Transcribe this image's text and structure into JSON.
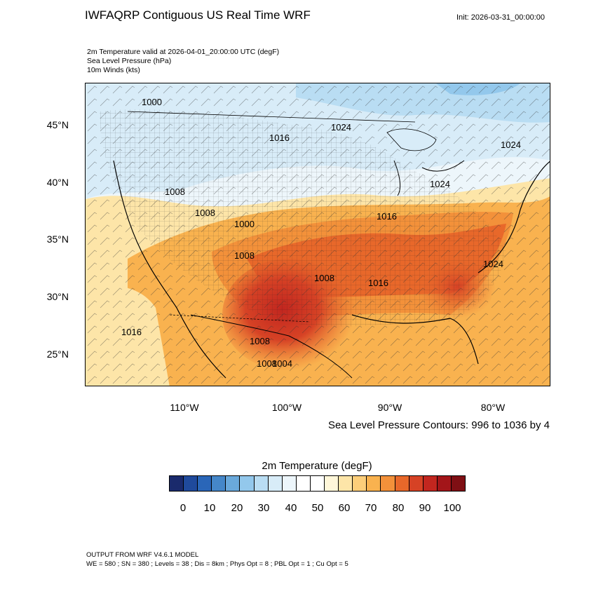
{
  "header": {
    "title": "IWFAQRP Contiguous US Real Time WRF",
    "init": "Init: 2026-03-31_00:00:00"
  },
  "fields": [
    "2m Temperature valid at 2026-04-01_20:00:00 UTC   (degF)",
    "Sea Level Pressure   (hPa)",
    "10m Winds   (kts)"
  ],
  "axes": {
    "lat_labels": [
      "45°N",
      "40°N",
      "35°N",
      "30°N",
      "25°N"
    ],
    "lon_labels": [
      "110°W",
      "100°W",
      "90°W",
      "80°W"
    ]
  },
  "contour_note": "Sea Level Pressure Contours: 996 to 1036 by 4",
  "contour_labels": [
    "1000",
    "1016",
    "1024",
    "1024",
    "1008",
    "1008",
    "1000",
    "1008",
    "1008",
    "1024",
    "1016",
    "1016",
    "1024",
    "1016",
    "1008",
    "1008",
    "1004"
  ],
  "colorbar": {
    "title": "2m Temperature  (degF)",
    "colors": [
      "#1a2a6c",
      "#1f4a9c",
      "#2a66b8",
      "#4587c9",
      "#6aa9db",
      "#93c8ec",
      "#b9ddf3",
      "#d8ecf8",
      "#edf6fb",
      "#ffffff",
      "#ffffff",
      "#fff7d9",
      "#fde5a8",
      "#fcce7a",
      "#f9b24f",
      "#f3913a",
      "#e8682a",
      "#d64225",
      "#c2261f",
      "#a31519",
      "#7f0f14"
    ],
    "labels": [
      "0",
      "10",
      "20",
      "30",
      "40",
      "50",
      "60",
      "70",
      "80",
      "90",
      "100"
    ]
  },
  "footer": {
    "line1": "OUTPUT FROM WRF V4.6.1 MODEL",
    "line2": "WE = 580 ; SN = 380 ; Levels = 38 ; Dis = 8km ; Phys Opt = 8 ; PBL Opt = 1 ; Cu Opt = 5"
  }
}
